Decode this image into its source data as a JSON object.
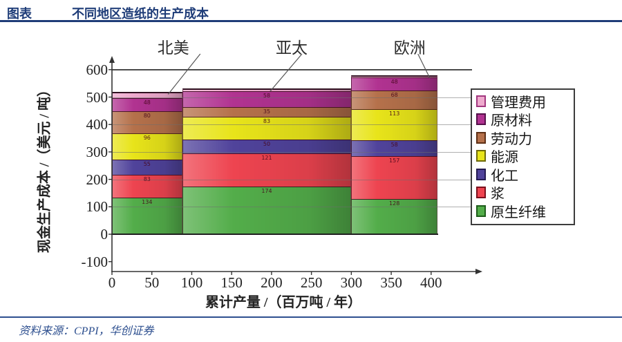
{
  "header": {
    "tag": "图表",
    "title": "不同地区造纸的生产成本"
  },
  "source": {
    "label": "资料来源：CPPI，华创证券"
  },
  "colors": {
    "header_blue": "#1e3c78",
    "source_blue": "#2d4f8f"
  },
  "chart_data": {
    "type": "bar",
    "subtype": "variable-width stacked cost curve",
    "title": "不同地区造纸的生产成本",
    "xlabel": "累计产量 /（百万吨 / 年）",
    "ylabel": "现金生产成本 /（美元 / 吨）",
    "x_ticks": [
      0,
      50,
      100,
      150,
      200,
      250,
      300,
      350,
      400
    ],
    "y_ticks": [
      600,
      500,
      400,
      300,
      200,
      100,
      0,
      -100
    ],
    "xlim": [
      0,
      415
    ],
    "ylim": [
      -100,
      600
    ],
    "grid": true,
    "legend_position": "right",
    "series": [
      {
        "name": "管理费用",
        "color": "#eeaacd",
        "border": "#a2377f"
      },
      {
        "name": "原材料",
        "color": "#b13391",
        "border": "#55104a"
      },
      {
        "name": "劳动力",
        "color": "#b5714b",
        "border": "#5e3016"
      },
      {
        "name": "能源",
        "color": "#e8e41a",
        "border": "#6e6a0a"
      },
      {
        "name": "化工",
        "color": "#50439b",
        "border": "#241a52"
      },
      {
        "name": "浆",
        "color": "#ee4450",
        "border": "#7a0f1c"
      },
      {
        "name": "原生纤维",
        "color": "#53ad4a",
        "border": "#1d5c1a"
      }
    ],
    "stack_order_bottom_to_top": [
      "原生纤维",
      "浆",
      "化工",
      "能源",
      "劳动力",
      "原材料",
      "管理费用"
    ],
    "regions": [
      {
        "name": "北美",
        "x_range_mt_per_year": [
          0,
          88
        ],
        "segments": {
          "原生纤维": 134,
          "浆": 83,
          "化工": 55,
          "能源": 96,
          "劳动力": 80,
          "原材料": 48,
          "管理费用": 24
        },
        "total": 520
      },
      {
        "name": "亚太",
        "x_range_mt_per_year": [
          88,
          300
        ],
        "segments": {
          "原生纤维": 174,
          "浆": 121,
          "化工": 50,
          "能源": 83,
          "劳动力": 35,
          "原材料": 58,
          "管理费用": 10
        },
        "total": 531
      },
      {
        "name": "欧洲",
        "x_range_mt_per_year": [
          300,
          408
        ],
        "segments": {
          "原生纤维": 128,
          "浆": 157,
          "化工": 58,
          "能源": 113,
          "劳动力": 68,
          "原材料": 48,
          "管理费用": 8
        },
        "total": 580
      }
    ],
    "values_estimated_from_axis": true
  }
}
